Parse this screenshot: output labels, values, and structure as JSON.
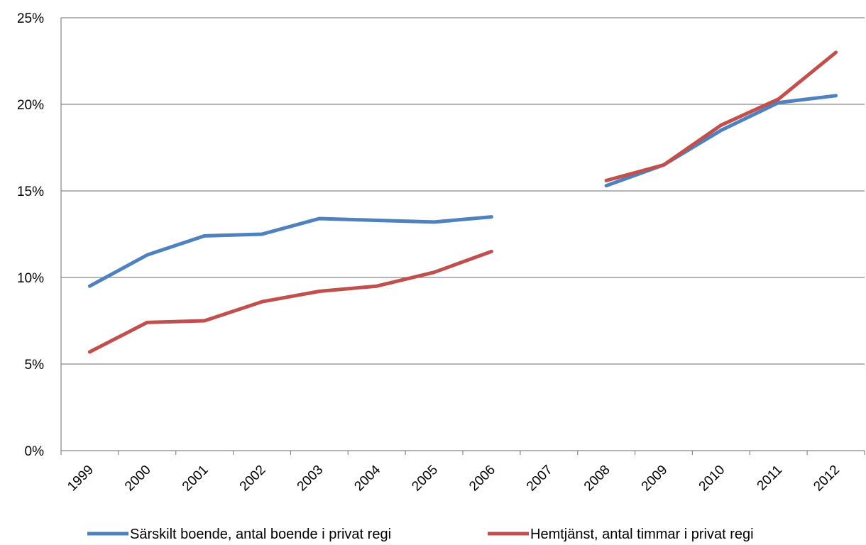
{
  "chart_data": {
    "type": "line",
    "categories": [
      "1999",
      "2000",
      "2001",
      "2002",
      "2003",
      "2004",
      "2005",
      "2006",
      "2007",
      "2008",
      "2009",
      "2010",
      "2011",
      "2012"
    ],
    "series": [
      {
        "name": "Särskilt boende, antal boende i privat regi",
        "color": "#4F81BD",
        "values": [
          9.5,
          11.3,
          12.4,
          12.5,
          13.4,
          13.3,
          13.2,
          13.5,
          null,
          15.3,
          16.5,
          18.5,
          20.1,
          20.5
        ]
      },
      {
        "name": "Hemtjänst, antal timmar i privat regi",
        "color": "#C0504D",
        "values": [
          5.7,
          7.4,
          7.5,
          8.6,
          9.2,
          9.5,
          10.3,
          11.5,
          null,
          15.6,
          16.5,
          18.8,
          20.3,
          23.0
        ]
      }
    ],
    "y_ticks": [
      "0%",
      "5%",
      "10%",
      "15%",
      "20%",
      "25%"
    ],
    "ylim": [
      0,
      25
    ],
    "grid": true,
    "legend_position": "bottom",
    "title": "",
    "xlabel": "",
    "ylabel": ""
  }
}
